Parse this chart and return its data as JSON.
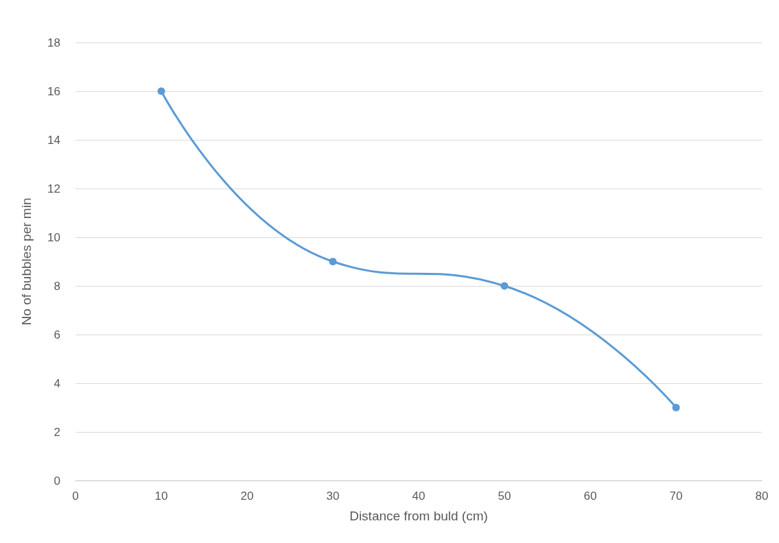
{
  "chart_data": {
    "type": "line",
    "xlabel": "Distance from buld (cm)",
    "ylabel": "No of bubbles per min",
    "x": [
      10,
      30,
      50,
      70
    ],
    "series": [
      {
        "color": "#5b9bd5",
        "values": [
          16,
          9,
          8,
          3
        ]
      }
    ],
    "xlim": [
      0,
      80
    ],
    "xticks": [
      0,
      10,
      20,
      30,
      40,
      50,
      60,
      70,
      80
    ],
    "ylim": [
      0,
      18
    ],
    "yticks": [
      0,
      2,
      4,
      6,
      8,
      10,
      12,
      14,
      16,
      18
    ],
    "grid": "y",
    "marker": "circle",
    "line_style": "solid"
  }
}
